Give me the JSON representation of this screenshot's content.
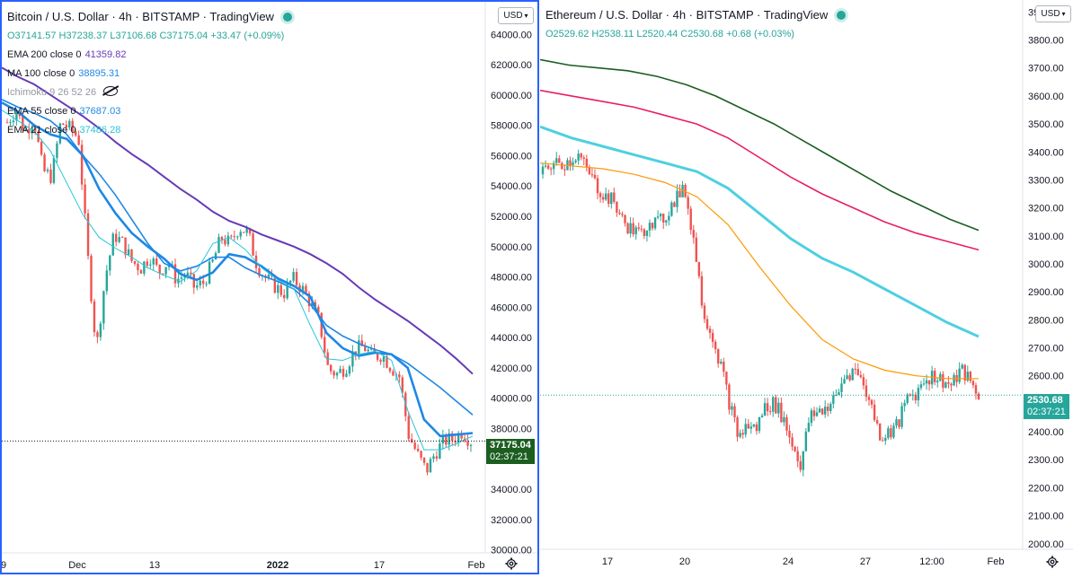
{
  "btc": {
    "title": "Bitcoin / U.S. Dollar · 4h · BITSTAMP · TradingView",
    "ohlc": {
      "o": "O37141.57",
      "h": "H37238.37",
      "l": "L37106.68",
      "c": "C37175.04",
      "chg": "+33.47 (+0.09%)"
    },
    "indicators": [
      {
        "label": "EMA 200 close 0",
        "value": "41359.82",
        "color": "#673ab7"
      },
      {
        "label": "MA 100 close 0",
        "value": "38895.31",
        "color": "#1e88e5"
      },
      {
        "label": "Ichimoku 9 26 52 26",
        "value": "",
        "color": "#9598a1"
      },
      {
        "label": "EMA 55 close 0",
        "value": "37687.03",
        "color": "#1e88e5"
      },
      {
        "label": "EMA 21 close 0",
        "value": "37486.28",
        "color": "#26c6da"
      }
    ],
    "currency": "USD",
    "price_tag": "37175.04",
    "countdown": "02:37:21",
    "top_partial_label": "6",
    "y_ticks": [
      "64000.00",
      "62000.00",
      "60000.00",
      "58000.00",
      "56000.00",
      "54000.00",
      "52000.00",
      "50000.00",
      "48000.00",
      "46000.00",
      "44000.00",
      "42000.00",
      "40000.00",
      "38000.00",
      "36000.00",
      "34000.00",
      "32000.00",
      "30000.00"
    ],
    "x_ticks": [
      "9",
      "Dec",
      "13",
      "2022",
      "17",
      "Feb"
    ]
  },
  "eth": {
    "title": "Ethereum / U.S. Dollar · 4h · BITSTAMP · TradingView",
    "ohlc": {
      "o": "O2529.62",
      "h": "H2538.11",
      "l": "L2520.44",
      "c": "C2530.68",
      "chg": "+0.68 (+0.03%)"
    },
    "currency": "USD",
    "price_tag": "2530.68",
    "countdown": "02:37:21",
    "y_ticks": [
      "3900.00",
      "3800.00",
      "3700.00",
      "3600.00",
      "3500.00",
      "3400.00",
      "3300.00",
      "3200.00",
      "3100.00",
      "3000.00",
      "2900.00",
      "2800.00",
      "2700.00",
      "2600.00",
      "2500.00",
      "2400.00",
      "2300.00",
      "2200.00",
      "2100.00",
      "2000.00"
    ],
    "x_ticks": [
      "17",
      "20",
      "24",
      "27",
      "12:00",
      "Feb"
    ]
  },
  "chart_data": [
    {
      "type": "candlestick",
      "title": "Bitcoin / U.S. Dollar · 4h · BITSTAMP",
      "ylim": [
        29800,
        65200
      ],
      "x_ticks": [
        "9",
        "Dec",
        "13",
        "2022",
        "17",
        "Feb"
      ],
      "close_path": [
        58200,
        59000,
        57600,
        58400,
        55000,
        54600,
        58200,
        57800,
        57200,
        49600,
        43200,
        48000,
        50800,
        50200,
        49000,
        48600,
        49400,
        48300,
        49000,
        47800,
        48200,
        47300,
        47600,
        48900,
        50600,
        50200,
        51300,
        50900,
        48800,
        47900,
        47400,
        46900,
        47900,
        47300,
        46300,
        45100,
        41900,
        41600,
        42100,
        43200,
        43400,
        42700,
        42900,
        42100,
        41400,
        37600,
        36300,
        35200,
        36400,
        37200,
        37300,
        37800,
        37175
      ],
      "series": [
        {
          "name": "EMA 200 close 0",
          "values": [
            61800,
            61200,
            60700,
            60000,
            59300,
            58600,
            57800,
            56900,
            56100,
            55400,
            54600,
            53800,
            53100,
            52300,
            51700,
            51300,
            50800,
            50400,
            50000,
            49500,
            48900,
            48200,
            47300,
            46500,
            45800,
            45100,
            44300,
            43500,
            42600,
            41600
          ]
        },
        {
          "name": "MA 100 close 0",
          "values": [
            59700,
            59200,
            58800,
            58300,
            57400,
            56000,
            54800,
            53400,
            51800,
            50200,
            48900,
            48400,
            48700,
            49300,
            49300,
            48600,
            48100,
            47700,
            47200,
            46200,
            44800,
            44100,
            43600,
            43200,
            42900,
            42300,
            41500,
            40700,
            39800,
            38900
          ]
        },
        {
          "name": "EMA 55 close 0",
          "values": [
            59500,
            58900,
            58000,
            57400,
            57100,
            56000,
            53800,
            52200,
            50900,
            50000,
            49200,
            48200,
            47800,
            48300,
            49500,
            49300,
            48700,
            47900,
            47400,
            46700,
            44300,
            43300,
            42800,
            43000,
            42900,
            42000,
            38600,
            37500,
            37600,
            37700
          ]
        },
        {
          "name": "EMA 21 close 0",
          "values": [
            59000,
            58300,
            57600,
            56300,
            54200,
            52100,
            50600,
            49900,
            49300,
            48600,
            48100,
            47700,
            48400,
            50200,
            50600,
            49800,
            48600,
            47800,
            47200,
            44800,
            42600,
            42500,
            42900,
            43100,
            42500,
            39200,
            36600,
            36600,
            37000,
            37500
          ]
        }
      ]
    },
    {
      "type": "candlestick",
      "title": "Ethereum / U.S. Dollar · 4h · BITSTAMP",
      "ylim": [
        1980,
        3930
      ],
      "x_ticks": [
        "17",
        "20",
        "24",
        "27",
        "12:00",
        "Feb"
      ],
      "close_path": [
        3320,
        3360,
        3350,
        3370,
        3390,
        3330,
        3280,
        3240,
        3220,
        3150,
        3120,
        3100,
        3160,
        3140,
        3180,
        3240,
        3260,
        3080,
        2840,
        2750,
        2640,
        2500,
        2380,
        2420,
        2410,
        2490,
        2500,
        2450,
        2360,
        2280,
        2450,
        2470,
        2490,
        2520,
        2600,
        2620,
        2580,
        2480,
        2380,
        2400,
        2430,
        2520,
        2540,
        2590,
        2600,
        2580,
        2560,
        2620,
        2580,
        2531
      ],
      "series": [
        {
          "name": "green MA",
          "values": [
            3730,
            3710,
            3700,
            3690,
            3670,
            3640,
            3600,
            3550,
            3500,
            3440,
            3380,
            3320,
            3260,
            3210,
            3160,
            3120
          ]
        },
        {
          "name": "red MA",
          "values": [
            3620,
            3600,
            3580,
            3560,
            3530,
            3500,
            3450,
            3380,
            3310,
            3250,
            3200,
            3150,
            3110,
            3080,
            3050
          ]
        },
        {
          "name": "cyan MA",
          "values": [
            3490,
            3450,
            3420,
            3390,
            3360,
            3330,
            3270,
            3180,
            3090,
            3020,
            2970,
            2910,
            2850,
            2790,
            2740
          ]
        },
        {
          "name": "orange EMA",
          "values": [
            3360,
            3350,
            3340,
            3320,
            3290,
            3240,
            3140,
            2990,
            2850,
            2730,
            2660,
            2620,
            2600,
            2590,
            2590
          ]
        }
      ]
    }
  ]
}
